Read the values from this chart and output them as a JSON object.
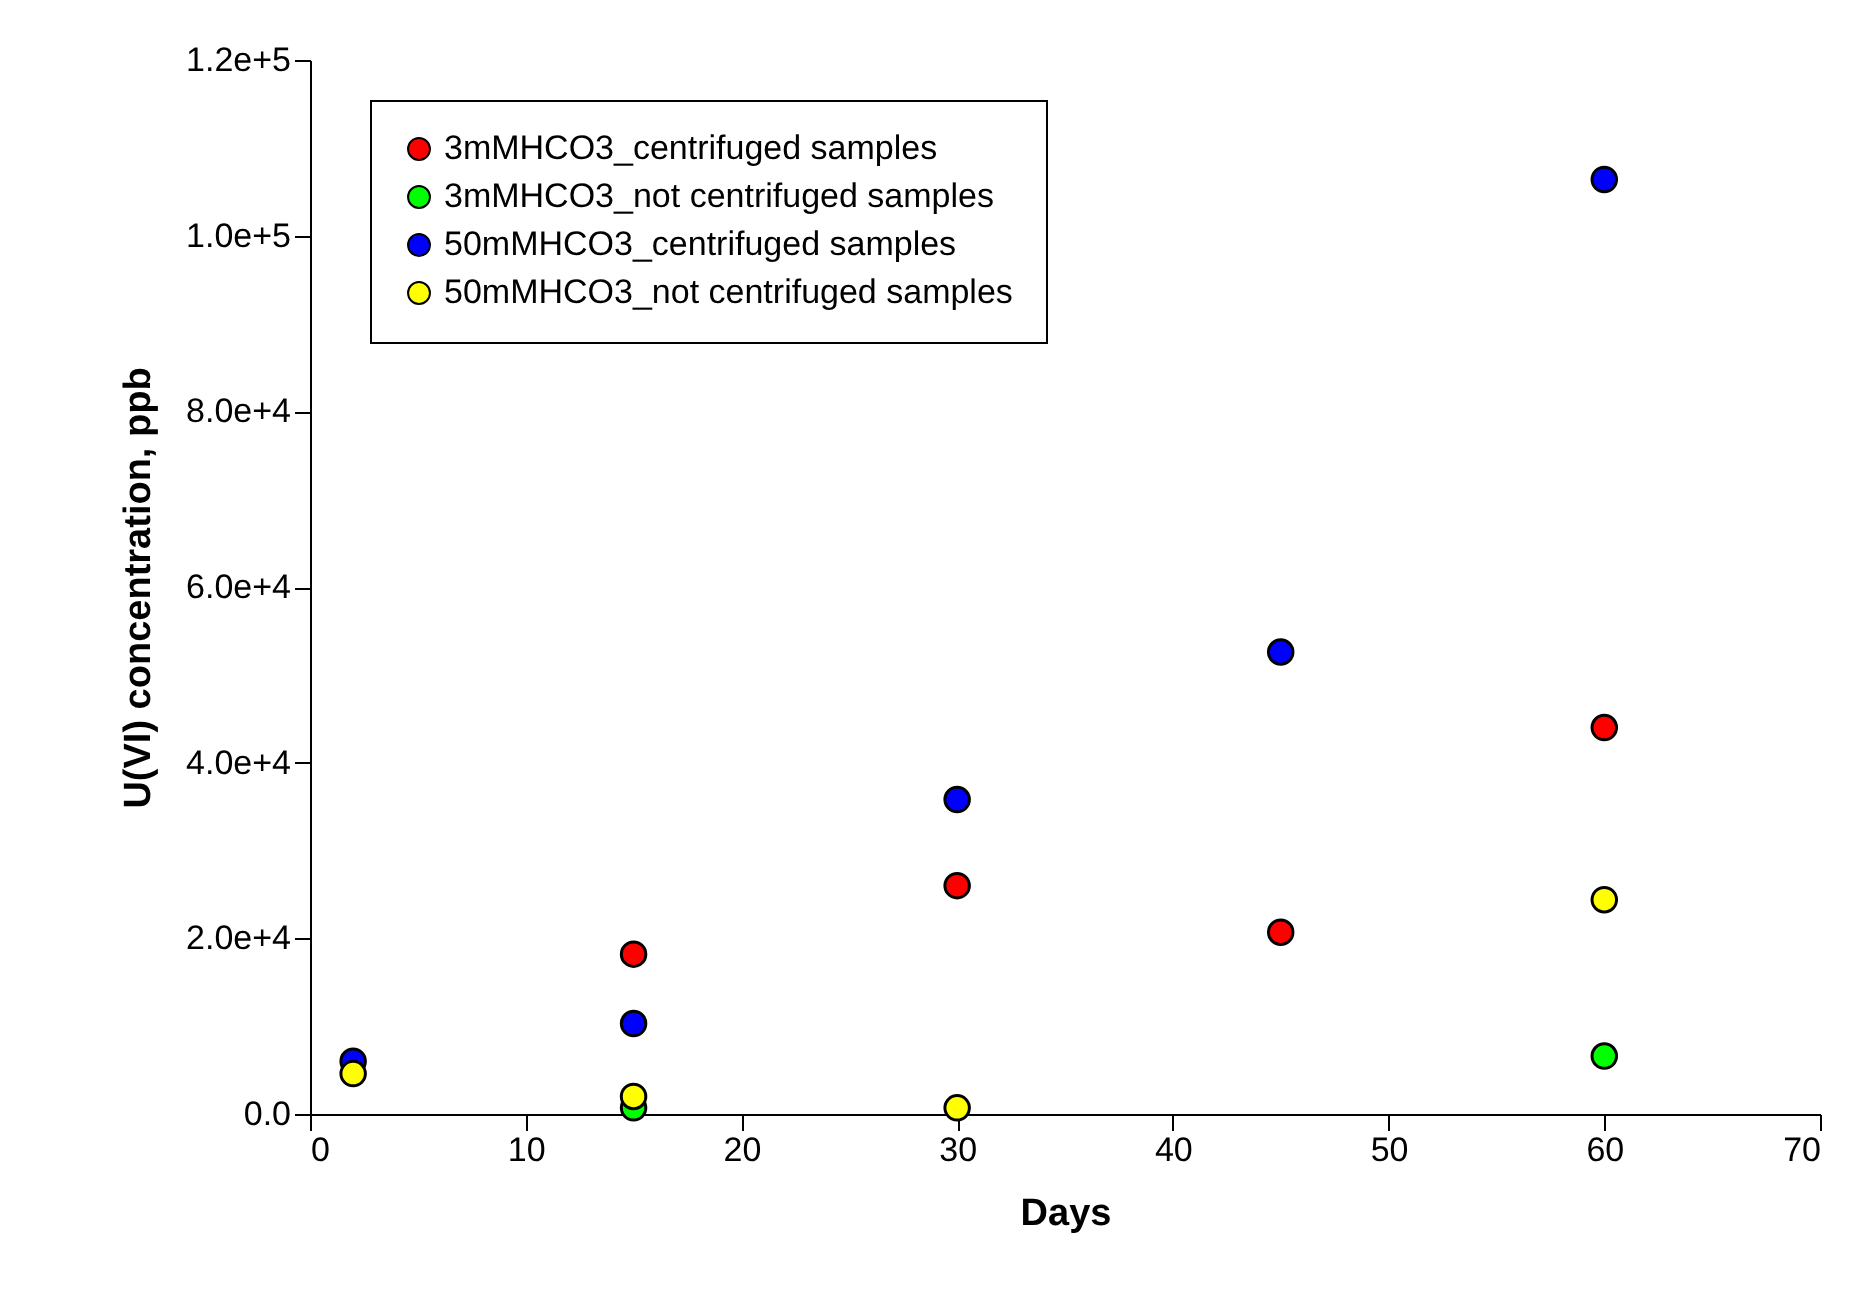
{
  "chart_data": {
    "type": "scatter",
    "xlabel": "Days",
    "ylabel": "U(VI) concentration, ppb",
    "x": [
      2,
      15,
      30,
      45,
      60
    ],
    "series": [
      {
        "name": "3mMHCO3_centrifuged samples",
        "color": "#ff0000",
        "values": [
          null,
          18200,
          26000,
          20700,
          44000
        ]
      },
      {
        "name": "3mMHCO3_not centrifuged samples",
        "color": "#00ff00",
        "values": [
          null,
          700,
          null,
          null,
          6600
        ]
      },
      {
        "name": "50mMHCO3_centrifuged samples",
        "color": "#0000ff",
        "values": [
          6000,
          10300,
          35800,
          52600,
          106400
        ]
      },
      {
        "name": "50mMHCO3_not centrifuged samples",
        "color": "#ffff00",
        "values": [
          4600,
          2000,
          700,
          null,
          24400
        ]
      }
    ],
    "xlim": [
      0,
      70
    ],
    "xticks": [
      0,
      10,
      20,
      30,
      40,
      50,
      60,
      70
    ],
    "ylim": [
      0,
      120000
    ],
    "yticks": [
      {
        "value": 0,
        "label": "0.0"
      },
      {
        "value": 20000,
        "label": "2.0e+4"
      },
      {
        "value": 40000,
        "label": "4.0e+4"
      },
      {
        "value": 60000,
        "label": "6.0e+4"
      },
      {
        "value": 80000,
        "label": "8.0e+4"
      },
      {
        "value": 100000,
        "label": "1.0e+5"
      },
      {
        "value": 120000,
        "label": "1.2e+5"
      }
    ],
    "marker": "circle",
    "grid": false,
    "legend": "top left"
  }
}
